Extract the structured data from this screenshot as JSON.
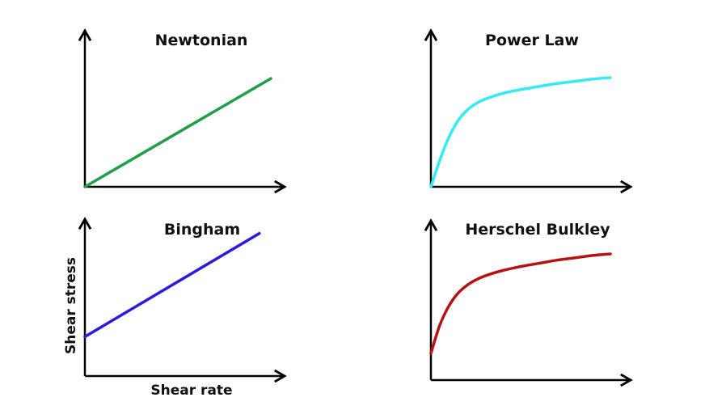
{
  "chart_data": [
    {
      "type": "line",
      "title": "Newtonian",
      "xlabel": "",
      "ylabel": "",
      "color": "#1fa048",
      "x": [
        0,
        1
      ],
      "y": [
        0,
        0.57
      ],
      "xlim": [
        0,
        1.02
      ],
      "ylim": [
        0,
        1.0
      ]
    },
    {
      "type": "line",
      "title": "Power Law",
      "xlabel": "",
      "ylabel": "",
      "color": "#33eaf5",
      "x": [
        0,
        0.05,
        0.1,
        0.15,
        0.2,
        0.25,
        0.3,
        0.4,
        0.5,
        0.6,
        0.7,
        0.8,
        0.9,
        1.0
      ],
      "y": [
        0,
        0.18,
        0.33,
        0.44,
        0.51,
        0.555,
        0.585,
        0.625,
        0.65,
        0.67,
        0.69,
        0.705,
        0.72,
        0.73
      ],
      "xlim": [
        0,
        1.02
      ],
      "ylim": [
        0,
        1.0
      ]
    },
    {
      "type": "line",
      "title": "Bingham",
      "xlabel": "Shear rate",
      "ylabel": "Shear stress",
      "color": "#2a1be0",
      "x": [
        0,
        0.93
      ],
      "y": [
        0.27,
        0.98
      ],
      "xlim": [
        0,
        1.02
      ],
      "ylim": [
        0,
        1.0
      ]
    },
    {
      "type": "line",
      "title": "Herschel Bulkley",
      "xlabel": "",
      "ylabel": "",
      "color": "#b51313",
      "x": [
        0,
        0.05,
        0.1,
        0.15,
        0.2,
        0.25,
        0.3,
        0.4,
        0.5,
        0.6,
        0.7,
        0.8,
        0.9,
        1.0
      ],
      "y": [
        0.17,
        0.35,
        0.47,
        0.55,
        0.6,
        0.635,
        0.66,
        0.695,
        0.72,
        0.74,
        0.76,
        0.775,
        0.79,
        0.8
      ],
      "xlim": [
        0,
        1.02
      ],
      "ylim": [
        0,
        1.0
      ]
    }
  ]
}
